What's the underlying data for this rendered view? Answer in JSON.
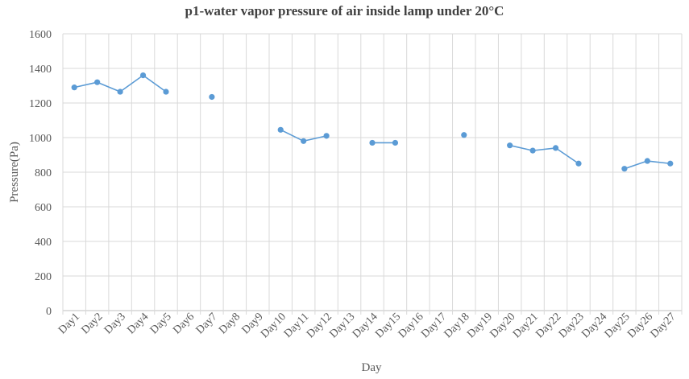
{
  "chart_data": {
    "type": "line",
    "title": "p1-water vapor pressure of air inside lamp under 20°C",
    "xlabel": "Day",
    "ylabel": "Pressure(Pa)",
    "ylim": [
      0,
      1600
    ],
    "yticks": [
      "0",
      "200",
      "400",
      "600",
      "800",
      "1000",
      "1200",
      "1400",
      "1600"
    ],
    "grid": true,
    "legend": "none",
    "color": "#5B9BD5",
    "categories": [
      "Day1",
      "Day2",
      "Day3",
      "Day4",
      "Day5",
      "Day6",
      "Day7",
      "Day8",
      "Day9",
      "Day10",
      "Day11",
      "Day12",
      "Day13",
      "Day14",
      "Day15",
      "Day16",
      "Day17",
      "Day18",
      "Day19",
      "Day20",
      "Day21",
      "Day22",
      "Day23",
      "Day24",
      "Day25",
      "Day26",
      "Day27"
    ],
    "series": [
      {
        "values": [
          1290,
          1320,
          1265,
          1360,
          1265,
          null,
          1235,
          null,
          null,
          1045,
          980,
          1010,
          null,
          970,
          970,
          null,
          null,
          1015,
          null,
          955,
          925,
          940,
          850,
          null,
          820,
          865,
          850
        ]
      }
    ]
  }
}
